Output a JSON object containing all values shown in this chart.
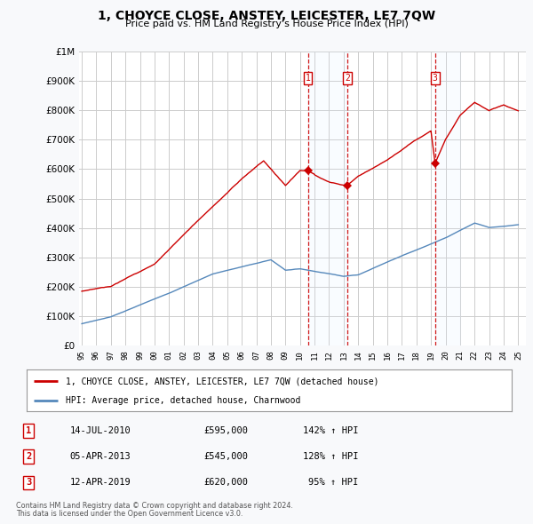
{
  "title": "1, CHOYCE CLOSE, ANSTEY, LEICESTER, LE7 7QW",
  "subtitle": "Price paid vs. HM Land Registry's House Price Index (HPI)",
  "transactions": [
    {
      "num": 1,
      "date": "14-JUL-2010",
      "price": 595000,
      "year": 2010.54,
      "pct": "142%",
      "dir": "↑"
    },
    {
      "num": 2,
      "date": "05-APR-2013",
      "price": 545000,
      "year": 2013.27,
      "pct": "128%",
      "dir": "↑"
    },
    {
      "num": 3,
      "date": "12-APR-2019",
      "price": 620000,
      "year": 2019.28,
      "pct": "95%",
      "dir": "↑"
    }
  ],
  "legend_line1": "1, CHOYCE CLOSE, ANSTEY, LEICESTER, LE7 7QW (detached house)",
  "legend_line2": "HPI: Average price, detached house, Charnwood",
  "footer1": "Contains HM Land Registry data © Crown copyright and database right 2024.",
  "footer2": "This data is licensed under the Open Government Licence v3.0.",
  "red_color": "#cc0000",
  "blue_color": "#5588bb",
  "shade_color": "#ddeeff",
  "background_color": "#f8f9fb",
  "plot_bg_color": "#ffffff",
  "grid_color": "#cccccc",
  "ylim": [
    0,
    1000000
  ],
  "xlim": [
    1994.8,
    2025.5
  ],
  "yticks": [
    0,
    100000,
    200000,
    300000,
    400000,
    500000,
    600000,
    700000,
    800000,
    900000,
    1000000
  ],
  "xticks": [
    1995,
    1996,
    1997,
    1998,
    1999,
    2000,
    2001,
    2002,
    2003,
    2004,
    2005,
    2006,
    2007,
    2008,
    2009,
    2010,
    2011,
    2012,
    2013,
    2014,
    2015,
    2016,
    2017,
    2018,
    2019,
    2020,
    2021,
    2022,
    2023,
    2024,
    2025
  ],
  "xtick_labels": [
    "95",
    "96",
    "97",
    "98",
    "99",
    "00",
    "01",
    "02",
    "03",
    "04",
    "05",
    "06",
    "07",
    "08",
    "09",
    "10",
    "11",
    "12",
    "13",
    "14",
    "15",
    "16",
    "17",
    "18",
    "19",
    "20",
    "21",
    "22",
    "23",
    "24",
    "25"
  ]
}
